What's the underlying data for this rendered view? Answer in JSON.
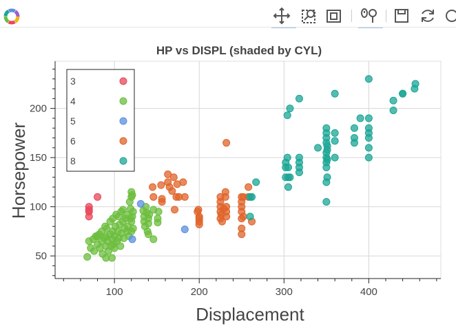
{
  "toolbar": {
    "tools": [
      {
        "name": "logo-icon",
        "label": ""
      },
      {
        "name": "pan-icon",
        "label": ""
      },
      {
        "name": "box-zoom-icon",
        "label": ""
      },
      {
        "name": "reset-view-icon",
        "label": ""
      },
      {
        "name": "wheel-zoom-icon",
        "label": ""
      },
      {
        "name": "save-icon",
        "label": ""
      },
      {
        "name": "refresh-icon",
        "label": ""
      }
    ]
  },
  "chart_data": {
    "type": "scatter",
    "title": "HP vs DISPL (shaded by CYL)",
    "xlabel": "Displacement",
    "ylabel": "Horsepower",
    "xlim": [
      30,
      485
    ],
    "ylim": [
      27,
      248
    ],
    "xticks": [
      100,
      200,
      300,
      400
    ],
    "yticks": [
      50,
      100,
      150,
      200
    ],
    "grid": true,
    "legend_position": "top-left",
    "series": [
      {
        "name": "3",
        "color": "#e8475a",
        "points": [
          [
            70,
            100
          ],
          [
            70,
            97
          ],
          [
            70,
            90
          ],
          [
            70,
            95
          ],
          [
            80,
            110
          ]
        ]
      },
      {
        "name": "4",
        "color": "#6cbd3e",
        "points": [
          [
            68,
            49
          ],
          [
            70,
            65
          ],
          [
            72,
            58
          ],
          [
            75,
            67
          ],
          [
            76,
            55
          ],
          [
            78,
            70
          ],
          [
            80,
            62
          ],
          [
            80,
            70
          ],
          [
            82,
            72
          ],
          [
            83,
            58
          ],
          [
            85,
            65
          ],
          [
            85,
            75
          ],
          [
            86,
            52
          ],
          [
            88,
            68
          ],
          [
            89,
            80
          ],
          [
            90,
            60
          ],
          [
            90,
            70
          ],
          [
            90,
            48
          ],
          [
            91,
            78
          ],
          [
            92,
            65
          ],
          [
            93,
            55
          ],
          [
            95,
            72
          ],
          [
            95,
            85
          ],
          [
            96,
            60
          ],
          [
            97,
            48
          ],
          [
            97,
            67
          ],
          [
            98,
            75
          ],
          [
            98,
            88
          ],
          [
            99,
            62
          ],
          [
            100,
            70
          ],
          [
            100,
            58
          ],
          [
            101,
            80
          ],
          [
            102,
            92
          ],
          [
            103,
            65
          ],
          [
            104,
            75
          ],
          [
            105,
            90
          ],
          [
            105,
            68
          ],
          [
            106,
            82
          ],
          [
            107,
            60
          ],
          [
            108,
            95
          ],
          [
            108,
            73
          ],
          [
            110,
            85
          ],
          [
            110,
            97
          ],
          [
            111,
            68
          ],
          [
            112,
            78
          ],
          [
            113,
            88
          ],
          [
            114,
            92
          ],
          [
            115,
            75
          ],
          [
            116,
            80
          ],
          [
            117,
            70
          ],
          [
            118,
            105
          ],
          [
            119,
            98
          ],
          [
            119,
            88
          ],
          [
            120,
            85
          ],
          [
            120,
            75
          ],
          [
            120,
            110
          ],
          [
            120,
            115
          ],
          [
            121,
            90
          ],
          [
            121,
            112
          ],
          [
            122,
            95
          ],
          [
            122,
            78
          ],
          [
            134,
            96
          ],
          [
            135,
            90
          ],
          [
            135,
            85
          ],
          [
            136,
            80
          ],
          [
            137,
            100
          ],
          [
            138,
            94
          ],
          [
            139,
            75
          ],
          [
            140,
            88
          ],
          [
            140,
            83
          ],
          [
            140,
            72
          ],
          [
            141,
            92
          ],
          [
            146,
            67
          ],
          [
            146,
            97
          ],
          [
            151,
            88
          ],
          [
            151,
            84
          ],
          [
            152,
            95
          ]
        ]
      },
      {
        "name": "5",
        "color": "#5b8fe0",
        "points": [
          [
            121,
            67
          ],
          [
            131,
            103
          ],
          [
            183,
            77
          ]
        ]
      },
      {
        "name": "6",
        "color": "#e0632a",
        "points": [
          [
            145,
            120
          ],
          [
            146,
            110
          ],
          [
            155,
            122
          ],
          [
            156,
            108
          ],
          [
            156,
            105
          ],
          [
            163,
            125
          ],
          [
            163,
            133
          ],
          [
            165,
            120
          ],
          [
            168,
            116
          ],
          [
            170,
            130
          ],
          [
            171,
            97
          ],
          [
            173,
            110
          ],
          [
            174,
            123
          ],
          [
            176,
            110
          ],
          [
            181,
            125
          ],
          [
            183,
            110
          ],
          [
            198,
            95
          ],
          [
            199,
            97
          ],
          [
            200,
            85
          ],
          [
            200,
            90
          ],
          [
            200,
            88
          ],
          [
            200,
            82
          ],
          [
            225,
            95
          ],
          [
            225,
            100
          ],
          [
            225,
            105
          ],
          [
            225,
            110
          ],
          [
            225,
            88
          ],
          [
            226,
            92
          ],
          [
            227,
            85
          ],
          [
            229,
            98
          ],
          [
            231,
            110
          ],
          [
            231,
            115
          ],
          [
            232,
            100
          ],
          [
            232,
            90
          ],
          [
            232,
            95
          ],
          [
            232,
            165
          ],
          [
            250,
            105
          ],
          [
            250,
            100
          ],
          [
            250,
            88
          ],
          [
            250,
            110
          ],
          [
            250,
            95
          ],
          [
            250,
            72
          ],
          [
            250,
            78
          ],
          [
            252,
            90
          ],
          [
            252,
            110
          ],
          [
            258,
            110
          ],
          [
            258,
            120
          ],
          [
            262,
            85
          ]
        ]
      },
      {
        "name": "8",
        "color": "#1ba595",
        "points": [
          [
            260,
            110
          ],
          [
            260,
            90
          ],
          [
            262,
            110
          ],
          [
            267,
            125
          ],
          [
            302,
            140
          ],
          [
            302,
            130
          ],
          [
            302,
            145
          ],
          [
            304,
            150
          ],
          [
            304,
            193
          ],
          [
            305,
            140
          ],
          [
            305,
            130
          ],
          [
            305,
            120
          ],
          [
            307,
            200
          ],
          [
            307,
            130
          ],
          [
            318,
            150
          ],
          [
            318,
            140
          ],
          [
            318,
            145
          ],
          [
            318,
            135
          ],
          [
            318,
            210
          ],
          [
            340,
            160
          ],
          [
            350,
            150
          ],
          [
            350,
            145
          ],
          [
            350,
            155
          ],
          [
            350,
            165
          ],
          [
            350,
            170
          ],
          [
            350,
            175
          ],
          [
            350,
            180
          ],
          [
            350,
            140
          ],
          [
            350,
            125
          ],
          [
            350,
            105
          ],
          [
            351,
            130
          ],
          [
            351,
            148
          ],
          [
            351,
            158
          ],
          [
            351,
            162
          ],
          [
            360,
            175
          ],
          [
            360,
            167
          ],
          [
            360,
            150
          ],
          [
            360,
            215
          ],
          [
            383,
            170
          ],
          [
            383,
            180
          ],
          [
            383,
            165
          ],
          [
            390,
            190
          ],
          [
            400,
            150
          ],
          [
            400,
            160
          ],
          [
            400,
            170
          ],
          [
            400,
            175
          ],
          [
            400,
            180
          ],
          [
            400,
            190
          ],
          [
            400,
            230
          ],
          [
            429,
            198
          ],
          [
            429,
            208
          ],
          [
            440,
            215
          ],
          [
            440,
            215
          ],
          [
            454,
            220
          ],
          [
            455,
            225
          ]
        ]
      }
    ]
  }
}
